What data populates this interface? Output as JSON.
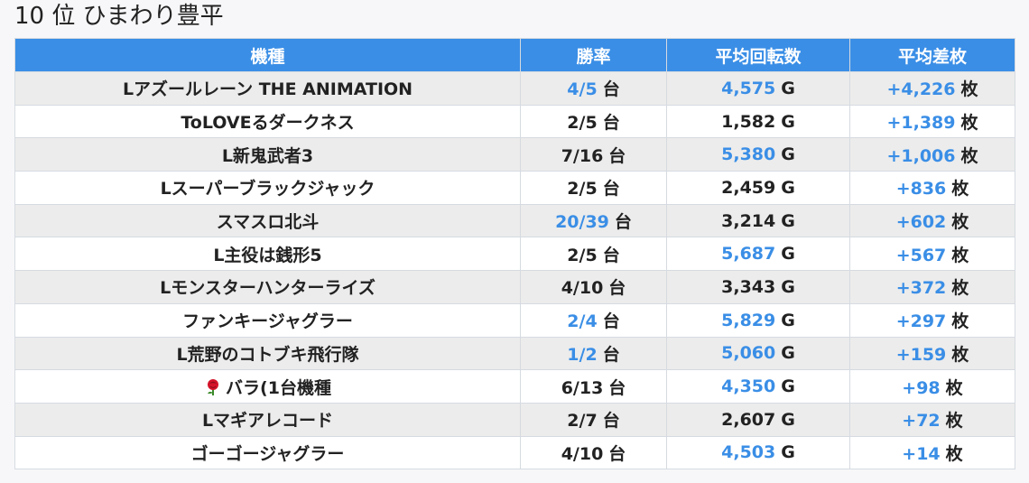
{
  "heading": "10 位 ひまわり豊平",
  "columns": [
    "機種",
    "勝率",
    "平均回転数",
    "平均差枚"
  ],
  "units": {
    "rate": "台",
    "spins": "G",
    "diff": "枚"
  },
  "rows": [
    {
      "name": "Lアズールレーン THE ANIMATION",
      "rate": "4/5",
      "rate_highlight": true,
      "spins": "4,575",
      "spins_highlight": true,
      "diff": "+4,226"
    },
    {
      "name": "ToLOVEるダークネス",
      "rate": "2/5",
      "rate_highlight": false,
      "spins": "1,582",
      "spins_highlight": false,
      "diff": "+1,389"
    },
    {
      "name": "L新鬼武者3",
      "rate": "7/16",
      "rate_highlight": false,
      "spins": "5,380",
      "spins_highlight": true,
      "diff": "+1,006"
    },
    {
      "name": "Lスーパーブラックジャック",
      "rate": "2/5",
      "rate_highlight": false,
      "spins": "2,459",
      "spins_highlight": false,
      "diff": "+836"
    },
    {
      "name": "スマスロ北斗",
      "rate": "20/39",
      "rate_highlight": true,
      "spins": "3,214",
      "spins_highlight": false,
      "diff": "+602"
    },
    {
      "name": "L主役は銭形5",
      "rate": "2/5",
      "rate_highlight": false,
      "spins": "5,687",
      "spins_highlight": true,
      "diff": "+567"
    },
    {
      "name": "Lモンスターハンターライズ",
      "rate": "4/10",
      "rate_highlight": false,
      "spins": "3,343",
      "spins_highlight": false,
      "diff": "+372"
    },
    {
      "name": "ファンキージャグラー",
      "rate": "2/4",
      "rate_highlight": true,
      "spins": "5,829",
      "spins_highlight": true,
      "diff": "+297"
    },
    {
      "name": "L荒野のコトブキ飛行隊",
      "rate": "1/2",
      "rate_highlight": true,
      "spins": "5,060",
      "spins_highlight": true,
      "diff": "+159"
    },
    {
      "name": "バラ(1台機種",
      "icon": "rose-icon",
      "rate": "6/13",
      "rate_highlight": false,
      "spins": "4,350",
      "spins_highlight": true,
      "diff": "+98"
    },
    {
      "name": "Lマギアレコード",
      "rate": "2/7",
      "rate_highlight": false,
      "spins": "2,607",
      "spins_highlight": false,
      "diff": "+72"
    },
    {
      "name": "ゴーゴージャグラー",
      "rate": "4/10",
      "rate_highlight": false,
      "spins": "4,503",
      "spins_highlight": true,
      "diff": "+14"
    }
  ],
  "colors": {
    "header_bg": "#3a8ee6",
    "highlight": "#3a8ee6",
    "stripe": "#ececec",
    "border": "#d6dbe1"
  }
}
